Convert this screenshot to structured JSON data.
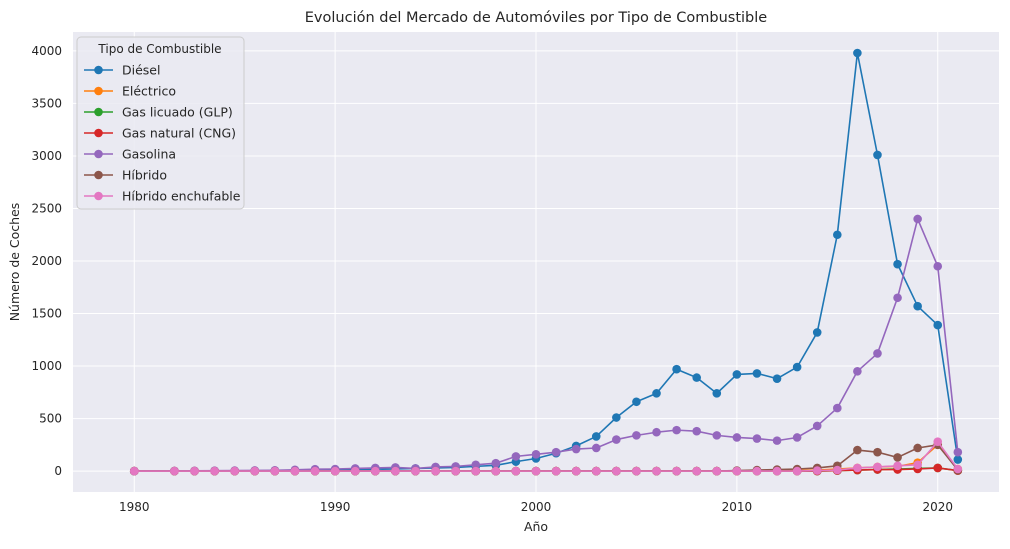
{
  "chart_data": {
    "type": "line",
    "title": "Evolución del Mercado de Automóviles por Tipo de Combustible",
    "xlabel": "Año",
    "ylabel": "Número de Coches",
    "xlim": [
      1976.95,
      2023.05
    ],
    "ylim": [
      -199,
      4180
    ],
    "xticks": [
      1980,
      1990,
      2000,
      2010,
      2020
    ],
    "yticks": [
      0,
      500,
      1000,
      1500,
      2000,
      2500,
      3000,
      3500,
      4000
    ],
    "grid": true,
    "background": "#eaeaf2",
    "legend": {
      "title": "Tipo de Combustible",
      "placement": "top-left"
    },
    "x": [
      1980,
      1982,
      1983,
      1984,
      1985,
      1986,
      1987,
      1988,
      1989,
      1990,
      1991,
      1992,
      1993,
      1994,
      1995,
      1996,
      1997,
      1998,
      1999,
      2000,
      2001,
      2002,
      2003,
      2004,
      2005,
      2006,
      2007,
      2008,
      2009,
      2010,
      2011,
      2012,
      2013,
      2014,
      2015,
      2016,
      2017,
      2018,
      2019,
      2020,
      2021
    ],
    "series": [
      {
        "name": "Diésel",
        "color": "#1f77b4",
        "values": [
          0,
          1,
          1,
          2,
          2,
          3,
          4,
          5,
          8,
          10,
          14,
          18,
          20,
          25,
          30,
          35,
          45,
          55,
          90,
          120,
          170,
          240,
          330,
          510,
          660,
          740,
          970,
          890,
          740,
          920,
          930,
          880,
          990,
          1320,
          2250,
          3980,
          3010,
          1970,
          1570,
          1390,
          110
        ]
      },
      {
        "name": "Eléctrico",
        "color": "#ff7f0e",
        "values": [
          0,
          0,
          0,
          0,
          0,
          0,
          0,
          0,
          0,
          0,
          0,
          0,
          0,
          0,
          0,
          0,
          0,
          0,
          0,
          0,
          0,
          0,
          0,
          0,
          0,
          0,
          0,
          0,
          0,
          0,
          2,
          3,
          5,
          10,
          20,
          30,
          40,
          45,
          80,
          250,
          20
        ]
      },
      {
        "name": "Gas licuado (GLP)",
        "color": "#2ca02c",
        "values": [
          0,
          0,
          0,
          0,
          0,
          0,
          0,
          0,
          0,
          0,
          0,
          0,
          0,
          0,
          0,
          0,
          0,
          0,
          0,
          0,
          0,
          0,
          0,
          0,
          0,
          0,
          0,
          0,
          0,
          0,
          0,
          0,
          0,
          0,
          5,
          10,
          15,
          20,
          25,
          30,
          5
        ]
      },
      {
        "name": "Gas natural (CNG)",
        "color": "#d62728",
        "values": [
          0,
          0,
          0,
          0,
          0,
          0,
          0,
          0,
          0,
          0,
          0,
          0,
          0,
          0,
          0,
          0,
          0,
          0,
          0,
          0,
          0,
          0,
          0,
          0,
          0,
          0,
          0,
          0,
          0,
          0,
          0,
          0,
          0,
          0,
          5,
          10,
          15,
          15,
          20,
          30,
          5
        ]
      },
      {
        "name": "Gasolina",
        "color": "#9467bd",
        "values": [
          0,
          2,
          3,
          4,
          5,
          6,
          8,
          12,
          18,
          20,
          25,
          30,
          35,
          25,
          40,
          45,
          60,
          75,
          140,
          160,
          180,
          210,
          220,
          300,
          340,
          370,
          390,
          380,
          340,
          320,
          310,
          290,
          320,
          430,
          600,
          950,
          1120,
          1650,
          2400,
          1950,
          180
        ]
      },
      {
        "name": "Híbrido",
        "color": "#8c564b",
        "values": [
          0,
          0,
          0,
          0,
          0,
          0,
          0,
          0,
          0,
          0,
          0,
          0,
          0,
          0,
          0,
          0,
          0,
          0,
          0,
          0,
          0,
          0,
          0,
          0,
          0,
          0,
          0,
          0,
          0,
          5,
          10,
          15,
          20,
          30,
          50,
          200,
          180,
          130,
          220,
          250,
          10
        ]
      },
      {
        "name": "Híbrido enchufable",
        "color": "#e377c2",
        "values": [
          0,
          0,
          0,
          0,
          0,
          0,
          0,
          0,
          0,
          0,
          0,
          0,
          0,
          0,
          0,
          0,
          0,
          0,
          0,
          0,
          0,
          0,
          0,
          0,
          0,
          0,
          0,
          0,
          0,
          0,
          0,
          0,
          0,
          5,
          10,
          30,
          40,
          50,
          60,
          280,
          20
        ]
      }
    ]
  }
}
